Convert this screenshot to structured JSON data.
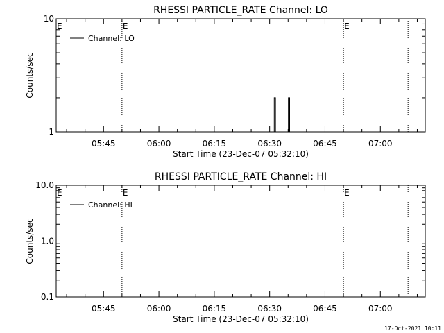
{
  "chart_data": [
    {
      "type": "line",
      "title": "RHESSI PARTICLE_RATE Channel: LO",
      "xlabel": "Start Time (23-Dec-07 05:32:10)",
      "ylabel": "Counts/sec",
      "y_scale": "log",
      "ylim": [
        1,
        10
      ],
      "y_ticks": [
        {
          "v": 1,
          "label": "1"
        },
        {
          "v": 10,
          "label": "10"
        }
      ],
      "xlim": [
        "05:32:10",
        "07:12:10"
      ],
      "x_ticks": [
        "05:45",
        "06:00",
        "06:15",
        "06:30",
        "06:45",
        "07:00"
      ],
      "legend": "Channel: LO",
      "legend_placement": "top-left",
      "grid": false,
      "event_lines": [
        {
          "time": "05:50:00",
          "label": "E"
        },
        {
          "time": "06:50:00",
          "label": "E"
        },
        {
          "time": "07:07:30",
          "label": ""
        }
      ],
      "series": [
        {
          "name": "Channel: LO",
          "points": [
            [
              "06:31:15",
              1
            ],
            [
              "06:31:15",
              2
            ],
            [
              "06:31:35",
              2
            ],
            [
              "06:31:35",
              1
            ],
            [
              "06:35:05",
              1
            ],
            [
              "06:35:05",
              2
            ],
            [
              "06:35:25",
              2
            ],
            [
              "06:35:25",
              1
            ]
          ]
        }
      ]
    },
    {
      "type": "line",
      "title": "RHESSI PARTICLE_RATE Channel: HI",
      "xlabel": "Start Time (23-Dec-07 05:32:10)",
      "ylabel": "Counts/sec",
      "y_scale": "log",
      "ylim": [
        0.1,
        10
      ],
      "y_ticks": [
        {
          "v": 0.1,
          "label": "0.1"
        },
        {
          "v": 1,
          "label": "1.0"
        },
        {
          "v": 10,
          "label": "10.0"
        }
      ],
      "xlim": [
        "05:32:10",
        "07:12:10"
      ],
      "x_ticks": [
        "05:45",
        "06:00",
        "06:15",
        "06:30",
        "06:45",
        "07:00"
      ],
      "legend": "Channel: HI",
      "legend_placement": "top-left",
      "grid": false,
      "event_lines": [
        {
          "time": "05:50:00",
          "label": "E"
        },
        {
          "time": "06:50:00",
          "label": "E"
        },
        {
          "time": "07:07:30",
          "label": ""
        }
      ],
      "series": [
        {
          "name": "Channel: HI",
          "points": []
        }
      ]
    }
  ],
  "footer": {
    "timestamp": "17-Oct-2021 10:11"
  }
}
